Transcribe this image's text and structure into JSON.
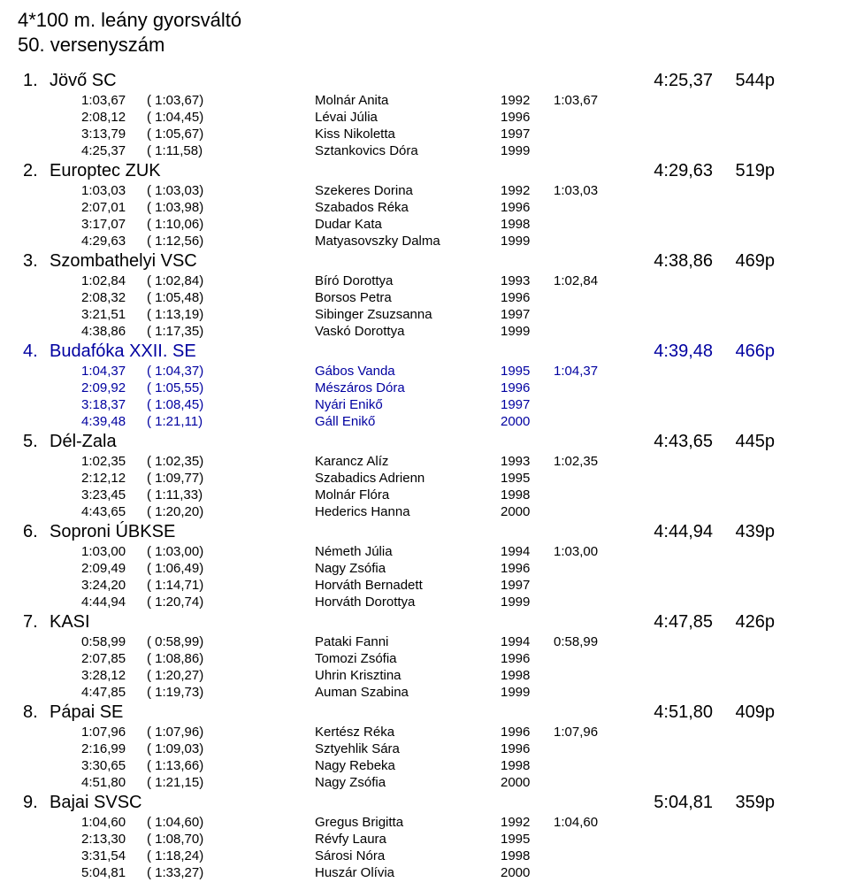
{
  "event_title": "4*100 m. leány gyorsváltó",
  "event_subtitle": "50. versenyszám",
  "teams": [
    {
      "place": "1.",
      "name": "Jövő SC",
      "final_time": "4:25,37",
      "points": "544p",
      "highlight": false,
      "swimmers": [
        {
          "cum": "1:03,67",
          "split": "( 1:03,67)",
          "name": "Molnár Anita",
          "year": "1992",
          "legtime": "1:03,67"
        },
        {
          "cum": "2:08,12",
          "split": "( 1:04,45)",
          "name": "Lévai Júlia",
          "year": "1996",
          "legtime": ""
        },
        {
          "cum": "3:13,79",
          "split": "( 1:05,67)",
          "name": "Kiss Nikoletta",
          "year": "1997",
          "legtime": ""
        },
        {
          "cum": "4:25,37",
          "split": "( 1:11,58)",
          "name": "Sztankovics Dóra",
          "year": "1999",
          "legtime": ""
        }
      ]
    },
    {
      "place": "2.",
      "name": "Europtec ZUK",
      "final_time": "4:29,63",
      "points": "519p",
      "highlight": false,
      "swimmers": [
        {
          "cum": "1:03,03",
          "split": "( 1:03,03)",
          "name": "Szekeres Dorina",
          "year": "1992",
          "legtime": "1:03,03"
        },
        {
          "cum": "2:07,01",
          "split": "( 1:03,98)",
          "name": "Szabados Réka",
          "year": "1996",
          "legtime": ""
        },
        {
          "cum": "3:17,07",
          "split": "( 1:10,06)",
          "name": "Dudar Kata",
          "year": "1998",
          "legtime": ""
        },
        {
          "cum": "4:29,63",
          "split": "( 1:12,56)",
          "name": "Matyasovszky Dalma",
          "year": "1999",
          "legtime": ""
        }
      ]
    },
    {
      "place": "3.",
      "name": "Szombathelyi VSC",
      "final_time": "4:38,86",
      "points": "469p",
      "highlight": false,
      "swimmers": [
        {
          "cum": "1:02,84",
          "split": "( 1:02,84)",
          "name": "Bíró Dorottya",
          "year": "1993",
          "legtime": "1:02,84"
        },
        {
          "cum": "2:08,32",
          "split": "( 1:05,48)",
          "name": "Borsos Petra",
          "year": "1996",
          "legtime": ""
        },
        {
          "cum": "3:21,51",
          "split": "( 1:13,19)",
          "name": "Sibinger Zsuzsanna",
          "year": "1997",
          "legtime": ""
        },
        {
          "cum": "4:38,86",
          "split": "( 1:17,35)",
          "name": "Vaskó Dorottya",
          "year": "1999",
          "legtime": ""
        }
      ]
    },
    {
      "place": "4.",
      "name": "Budafóka XXII. SE",
      "final_time": "4:39,48",
      "points": "466p",
      "highlight": true,
      "swimmers": [
        {
          "cum": "1:04,37",
          "split": "( 1:04,37)",
          "name": "Gábos Vanda",
          "year": "1995",
          "legtime": "1:04,37"
        },
        {
          "cum": "2:09,92",
          "split": "( 1:05,55)",
          "name": "Mészáros Dóra",
          "year": "1996",
          "legtime": ""
        },
        {
          "cum": "3:18,37",
          "split": "( 1:08,45)",
          "name": "Nyári Enikő",
          "year": "1997",
          "legtime": ""
        },
        {
          "cum": "4:39,48",
          "split": "( 1:21,11)",
          "name": "Gáll Enikő",
          "year": "2000",
          "legtime": ""
        }
      ]
    },
    {
      "place": "5.",
      "name": "Dél-Zala",
      "final_time": "4:43,65",
      "points": "445p",
      "highlight": false,
      "swimmers": [
        {
          "cum": "1:02,35",
          "split": "( 1:02,35)",
          "name": "Karancz Alíz",
          "year": "1993",
          "legtime": "1:02,35"
        },
        {
          "cum": "2:12,12",
          "split": "( 1:09,77)",
          "name": "Szabadics Adrienn",
          "year": "1995",
          "legtime": ""
        },
        {
          "cum": "3:23,45",
          "split": "( 1:11,33)",
          "name": "Molnár Flóra",
          "year": "1998",
          "legtime": ""
        },
        {
          "cum": "4:43,65",
          "split": "( 1:20,20)",
          "name": "Hederics Hanna",
          "year": "2000",
          "legtime": ""
        }
      ]
    },
    {
      "place": "6.",
      "name": "Soproni ÚBKSE",
      "final_time": "4:44,94",
      "points": "439p",
      "highlight": false,
      "swimmers": [
        {
          "cum": "1:03,00",
          "split": "( 1:03,00)",
          "name": "Németh Júlia",
          "year": "1994",
          "legtime": "1:03,00"
        },
        {
          "cum": "2:09,49",
          "split": "( 1:06,49)",
          "name": "Nagy Zsófia",
          "year": "1996",
          "legtime": ""
        },
        {
          "cum": "3:24,20",
          "split": "( 1:14,71)",
          "name": "Horváth Bernadett",
          "year": "1997",
          "legtime": ""
        },
        {
          "cum": "4:44,94",
          "split": "( 1:20,74)",
          "name": "Horváth Dorottya",
          "year": "1999",
          "legtime": ""
        }
      ]
    },
    {
      "place": "7.",
      "name": "KASI",
      "final_time": "4:47,85",
      "points": "426p",
      "highlight": false,
      "swimmers": [
        {
          "cum": "0:58,99",
          "split": "( 0:58,99)",
          "name": "Pataki Fanni",
          "year": "1994",
          "legtime": "0:58,99"
        },
        {
          "cum": "2:07,85",
          "split": "( 1:08,86)",
          "name": "Tomozi Zsófia",
          "year": "1996",
          "legtime": ""
        },
        {
          "cum": "3:28,12",
          "split": "( 1:20,27)",
          "name": "Uhrin Krisztina",
          "year": "1998",
          "legtime": ""
        },
        {
          "cum": "4:47,85",
          "split": "( 1:19,73)",
          "name": "Auman Szabina",
          "year": "1999",
          "legtime": ""
        }
      ]
    },
    {
      "place": "8.",
      "name": "Pápai SE",
      "final_time": "4:51,80",
      "points": "409p",
      "highlight": false,
      "swimmers": [
        {
          "cum": "1:07,96",
          "split": "( 1:07,96)",
          "name": "Kertész Réka",
          "year": "1996",
          "legtime": "1:07,96"
        },
        {
          "cum": "2:16,99",
          "split": "( 1:09,03)",
          "name": "Sztyehlik Sára",
          "year": "1996",
          "legtime": ""
        },
        {
          "cum": "3:30,65",
          "split": "( 1:13,66)",
          "name": "Nagy Rebeka",
          "year": "1998",
          "legtime": ""
        },
        {
          "cum": "4:51,80",
          "split": "( 1:21,15)",
          "name": "Nagy Zsófia",
          "year": "2000",
          "legtime": ""
        }
      ]
    },
    {
      "place": "9.",
      "name": "Bajai SVSC",
      "final_time": "5:04,81",
      "points": "359p",
      "highlight": false,
      "swimmers": [
        {
          "cum": "1:04,60",
          "split": "( 1:04,60)",
          "name": "Gregus Brigitta",
          "year": "1992",
          "legtime": "1:04,60"
        },
        {
          "cum": "2:13,30",
          "split": "( 1:08,70)",
          "name": "Révfy Laura",
          "year": "1995",
          "legtime": ""
        },
        {
          "cum": "3:31,54",
          "split": "( 1:18,24)",
          "name": "Sárosi Nóra",
          "year": "1998",
          "legtime": ""
        },
        {
          "cum": "5:04,81",
          "split": "( 1:33,27)",
          "name": "Huszár Olívia",
          "year": "2000",
          "legtime": ""
        }
      ]
    }
  ]
}
